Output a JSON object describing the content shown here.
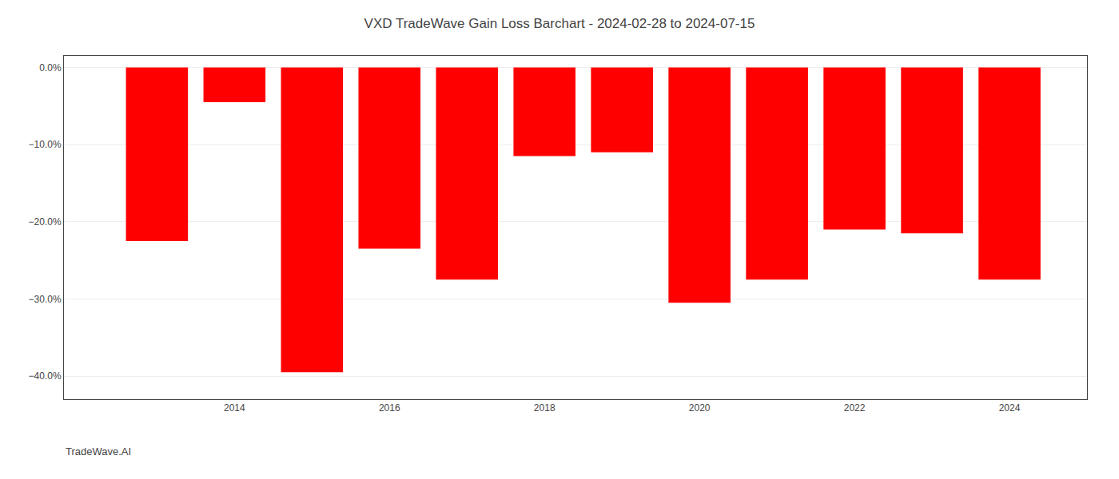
{
  "chart_data": {
    "type": "bar",
    "title": "VXD TradeWave Gain Loss Barchart - 2024-02-28 to 2024-07-15",
    "annotations": [
      "TradeWave.AI"
    ],
    "x": [
      2013,
      2014,
      2015,
      2016,
      2017,
      2018,
      2019,
      2020,
      2021,
      2022,
      2023,
      2024
    ],
    "values": [
      -22.5,
      -4.5,
      -39.5,
      -23.5,
      -27.5,
      -11.5,
      -11.0,
      -30.5,
      -27.5,
      -21.0,
      -21.5,
      -27.5
    ],
    "color": "#ff0000",
    "xlim": [
      2011.8,
      2025.0
    ],
    "xticks": [
      2014,
      2016,
      2018,
      2020,
      2022,
      2024
    ],
    "ylim": [
      -43,
      1.5
    ],
    "yticks": [
      {
        "value": 0.0,
        "label": "0.0%"
      },
      {
        "value": -10.0,
        "label": "−10.0%"
      },
      {
        "value": -20.0,
        "label": "−20.0%"
      },
      {
        "value": -30.0,
        "label": "−30.0%"
      },
      {
        "value": -40.0,
        "label": "−40.0%"
      }
    ],
    "grid": true
  }
}
